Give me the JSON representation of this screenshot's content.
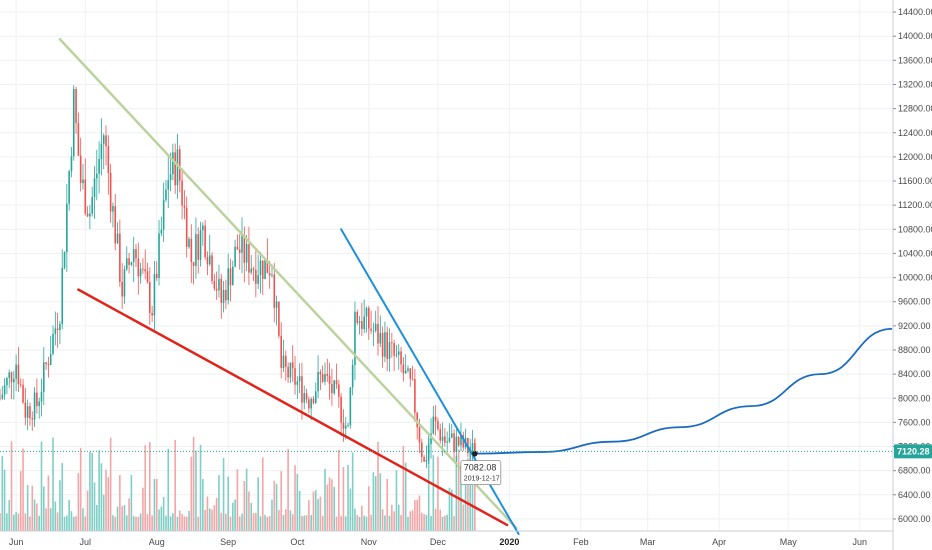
{
  "chart_data": {
    "type": "candlestick",
    "instrument_hint": "price chart with volume, trendlines and a projection curve",
    "y_axis": {
      "side": "right",
      "ticks": [
        14400,
        14000,
        13600,
        13200,
        12800,
        12400,
        12000,
        11600,
        11200,
        10800,
        10400,
        10000,
        9600,
        9200,
        8800,
        8400,
        8000,
        7600,
        7200,
        6800,
        6400,
        6000
      ],
      "tick_labels": [
        "14400.00",
        "14000.00",
        "13600.00",
        "13200.00",
        "12800.00",
        "12400.00",
        "12000.00",
        "11600.00",
        "11200.00",
        "10800.00",
        "10400.00",
        "10000.00",
        "9600.00",
        "9200.00",
        "8800.00",
        "8400.00",
        "8000.00",
        "7600.00",
        "7200.00",
        "6800.00",
        "6400.00",
        "6000.00"
      ],
      "range": [
        5800,
        14600
      ]
    },
    "x_axis": {
      "range": [
        "2019-05-25",
        "2020-06-15"
      ],
      "ticks": [
        {
          "date": "2019-06-01",
          "label": "Jun",
          "bold": false
        },
        {
          "date": "2019-07-01",
          "label": "Jul",
          "bold": false
        },
        {
          "date": "2019-08-01",
          "label": "Aug",
          "bold": false
        },
        {
          "date": "2019-09-01",
          "label": "Sep",
          "bold": false
        },
        {
          "date": "2019-10-01",
          "label": "Oct",
          "bold": false
        },
        {
          "date": "2019-11-01",
          "label": "Nov",
          "bold": false
        },
        {
          "date": "2019-12-01",
          "label": "Dec",
          "bold": false
        },
        {
          "date": "2020-01-01",
          "label": "2020",
          "bold": true
        },
        {
          "date": "2020-02-01",
          "label": "Feb",
          "bold": false
        },
        {
          "date": "2020-03-01",
          "label": "Mar",
          "bold": false
        },
        {
          "date": "2020-04-01",
          "label": "Apr",
          "bold": false
        },
        {
          "date": "2020-05-01",
          "label": "May",
          "bold": false
        },
        {
          "date": "2020-06-01",
          "label": "Jun",
          "bold": false
        }
      ]
    },
    "price_anchors": [
      {
        "date": "2019-05-25",
        "close": 8000
      },
      {
        "date": "2019-06-01",
        "close": 8600
      },
      {
        "date": "2019-06-05",
        "close": 7800
      },
      {
        "date": "2019-06-10",
        "close": 7900
      },
      {
        "date": "2019-06-15",
        "close": 8700
      },
      {
        "date": "2019-06-20",
        "close": 9500
      },
      {
        "date": "2019-06-26",
        "close": 12900
      },
      {
        "date": "2019-06-29",
        "close": 11600
      },
      {
        "date": "2019-07-03",
        "close": 11100
      },
      {
        "date": "2019-07-09",
        "close": 12400
      },
      {
        "date": "2019-07-12",
        "close": 11400
      },
      {
        "date": "2019-07-17",
        "close": 9800
      },
      {
        "date": "2019-07-22",
        "close": 10500
      },
      {
        "date": "2019-07-30",
        "close": 9500
      },
      {
        "date": "2019-08-06",
        "close": 11700
      },
      {
        "date": "2019-08-10",
        "close": 11900
      },
      {
        "date": "2019-08-16",
        "close": 10300
      },
      {
        "date": "2019-08-21",
        "close": 10800
      },
      {
        "date": "2019-08-29",
        "close": 9600
      },
      {
        "date": "2019-09-05",
        "close": 10500
      },
      {
        "date": "2019-09-12",
        "close": 10200
      },
      {
        "date": "2019-09-20",
        "close": 10200
      },
      {
        "date": "2019-09-24",
        "close": 8500
      },
      {
        "date": "2019-09-30",
        "close": 8300
      },
      {
        "date": "2019-10-06",
        "close": 8000
      },
      {
        "date": "2019-10-12",
        "close": 8400
      },
      {
        "date": "2019-10-18",
        "close": 8000
      },
      {
        "date": "2019-10-23",
        "close": 7450
      },
      {
        "date": "2019-10-26",
        "close": 9400
      },
      {
        "date": "2019-11-01",
        "close": 9200
      },
      {
        "date": "2019-11-08",
        "close": 8900
      },
      {
        "date": "2019-11-15",
        "close": 8500
      },
      {
        "date": "2019-11-20",
        "close": 8100
      },
      {
        "date": "2019-11-25",
        "close": 6900
      },
      {
        "date": "2019-11-29",
        "close": 7600
      },
      {
        "date": "2019-12-04",
        "close": 7300
      },
      {
        "date": "2019-12-10",
        "close": 7250
      },
      {
        "date": "2019-12-17",
        "close": 7082
      }
    ],
    "trendlines": [
      {
        "name": "upper-descending-line",
        "color": "#bcd29f",
        "width": 2.5,
        "points": [
          [
            "2019-06-20",
            13950
          ],
          [
            "2020-01-04",
            5850
          ]
        ]
      },
      {
        "name": "lower-support-line",
        "color": "#e2231a",
        "width": 2.5,
        "points": [
          [
            "2019-06-28",
            9800
          ],
          [
            "2019-12-31",
            5900
          ]
        ]
      },
      {
        "name": "steep-resistance-line",
        "color": "#1e90dd",
        "width": 2,
        "points": [
          [
            "2019-10-20",
            10800
          ],
          [
            "2020-01-05",
            5750
          ]
        ]
      }
    ],
    "projection_curve": {
      "color": "#1b6bbf",
      "start": [
        "2019-12-17",
        7082
      ],
      "points": [
        [
          "2019-12-17",
          7082
        ],
        [
          "2020-01-15",
          7110
        ],
        [
          "2020-02-15",
          7280
        ],
        [
          "2020-03-15",
          7520
        ],
        [
          "2020-04-15",
          7870
        ],
        [
          "2020-05-15",
          8400
        ],
        [
          "2020-06-15",
          9150
        ]
      ]
    },
    "current_price": {
      "value": 7120.28,
      "label": "7120.28",
      "color": "#26a69a"
    },
    "tooltip": {
      "price": "7082.08",
      "date": "2019-12-17"
    },
    "volume": {
      "max": 100,
      "up_color": "#7fcfc6",
      "down_color": "#f4a6a6"
    },
    "colors": {
      "up": "#26a69a",
      "down": "#ef5350",
      "grid": "#eef0f3"
    }
  }
}
